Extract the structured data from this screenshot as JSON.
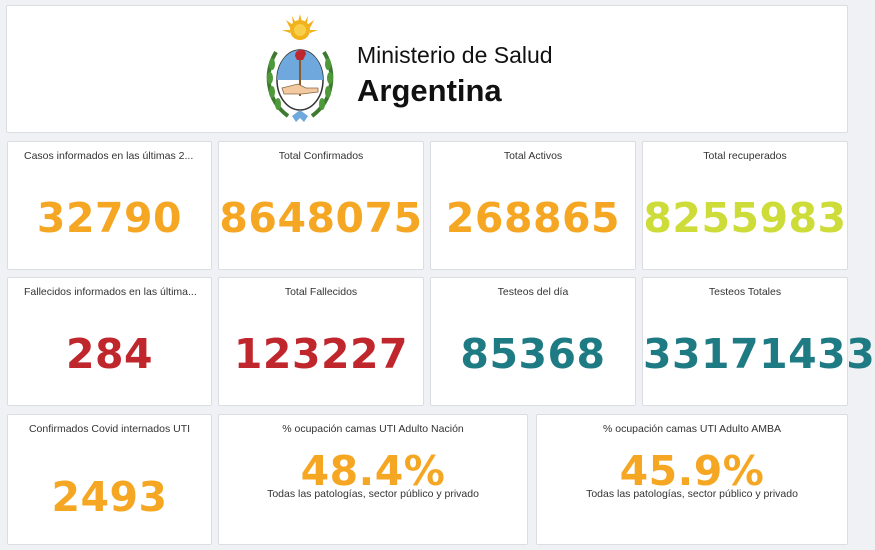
{
  "header": {
    "ministry_line": "Ministerio de Salud",
    "country_line": "Argentina",
    "emblem": "coat-of-arms-argentina"
  },
  "colors": {
    "orange": "#f5a623",
    "lime": "#cddc39",
    "red": "#c0272d",
    "teal": "#1f7b83"
  },
  "cards": {
    "casos_24h": {
      "title": "Casos informados en las últimas 2...",
      "value": "32790"
    },
    "total_confirmados": {
      "title": "Total Confirmados",
      "value": "8648075"
    },
    "total_activos": {
      "title": "Total Activos",
      "value": "268865"
    },
    "total_recuperados": {
      "title": "Total recuperados",
      "value": "8255983"
    },
    "fallecidos_24h": {
      "title": "Fallecidos informados en las última...",
      "value": "284"
    },
    "total_fallecidos": {
      "title": "Total Fallecidos",
      "value": "123227"
    },
    "testeos_dia": {
      "title": "Testeos del día",
      "value": "85368"
    },
    "testeos_totales": {
      "title": "Testeos Totales",
      "value": "33171433"
    },
    "internados_uti": {
      "title": "Confirmados Covid internados UTI",
      "value": "2493"
    },
    "uti_nacion": {
      "title": "% ocupación camas UTI Adulto Nación",
      "value": "48.4%",
      "subtitle": "Todas las patologías, sector público y privado"
    },
    "uti_amba": {
      "title": "% ocupación camas UTI Adulto AMBA",
      "value": "45.9%",
      "subtitle": "Todas las patologías, sector público y privado"
    }
  }
}
